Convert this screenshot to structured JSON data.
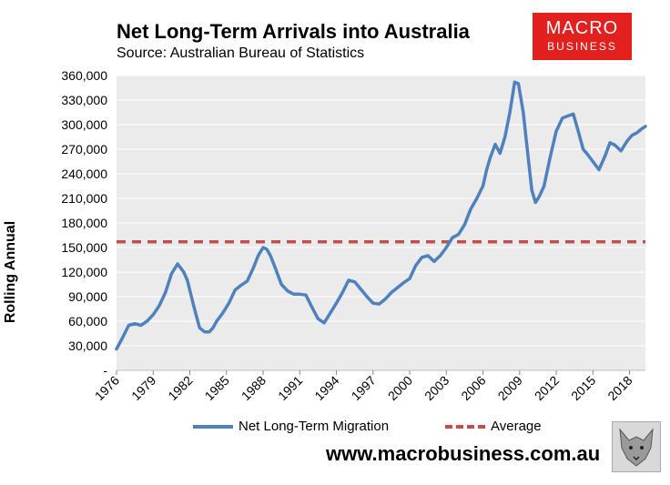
{
  "header": {
    "title": "Net Long-Term Arrivals into Australia",
    "subtitle": "Source: Australian Bureau of Statistics"
  },
  "logo": {
    "line1": "MACRO",
    "line2": "BUSINESS"
  },
  "footer": {
    "website": "www.macrobusiness.com.au"
  },
  "colors": {
    "series": "#4f81bd",
    "average": "#c0504d",
    "plot_bg": "#ebebeb",
    "logo_bg": "#e2201d"
  },
  "chart_data": {
    "type": "line",
    "title": "Net Long-Term Arrivals into Australia",
    "xlabel": "",
    "ylabel": "Rolling Annual",
    "ylim": [
      0,
      360000
    ],
    "xlim": [
      1976,
      2019.3
    ],
    "yticks": [
      {
        "value": 0,
        "label": "-"
      },
      {
        "value": 30000,
        "label": "30,000"
      },
      {
        "value": 60000,
        "label": "60,000"
      },
      {
        "value": 90000,
        "label": "90,000"
      },
      {
        "value": 120000,
        "label": "120,000"
      },
      {
        "value": 150000,
        "label": "150,000"
      },
      {
        "value": 180000,
        "label": "180,000"
      },
      {
        "value": 210000,
        "label": "210,000"
      },
      {
        "value": 240000,
        "label": "240,000"
      },
      {
        "value": 270000,
        "label": "270,000"
      },
      {
        "value": 300000,
        "label": "300,000"
      },
      {
        "value": 330000,
        "label": "330,000"
      },
      {
        "value": 360000,
        "label": "360,000"
      }
    ],
    "xticks": [
      "1976",
      "1979",
      "1982",
      "1985",
      "1988",
      "1991",
      "1994",
      "1997",
      "2000",
      "2003",
      "2006",
      "2009",
      "2012",
      "2015",
      "2018"
    ],
    "legend_position": "bottom",
    "series": [
      {
        "name": "Net Long-Term Migration",
        "x": [
          1976.0,
          1976.5,
          1977.0,
          1977.5,
          1978.0,
          1978.5,
          1979.0,
          1979.5,
          1980.0,
          1980.5,
          1981.0,
          1981.5,
          1981.8,
          1982.3,
          1982.8,
          1983.2,
          1983.6,
          1983.9,
          1984.2,
          1984.7,
          1985.2,
          1985.7,
          1986.2,
          1986.7,
          1987.2,
          1987.6,
          1988.0,
          1988.3,
          1988.6,
          1989.0,
          1989.5,
          1990.0,
          1990.5,
          1991.0,
          1991.5,
          1992.0,
          1992.5,
          1993.0,
          1993.5,
          1994.0,
          1994.5,
          1995.0,
          1995.5,
          1996.0,
          1996.5,
          1997.0,
          1997.5,
          1998.0,
          1998.5,
          1999.0,
          1999.5,
          2000.0,
          2000.5,
          2001.0,
          2001.5,
          2002.0,
          2002.5,
          2003.0,
          2003.5,
          2004.0,
          2004.5,
          2005.0,
          2005.5,
          2006.0,
          2006.3,
          2006.6,
          2007.0,
          2007.4,
          2007.8,
          2008.2,
          2008.6,
          2008.9,
          2009.3,
          2009.7,
          2010.0,
          2010.3,
          2010.6,
          2011.0,
          2011.5,
          2012.0,
          2012.5,
          2013.0,
          2013.4,
          2013.8,
          2014.2,
          2014.6,
          2015.0,
          2015.5,
          2016.0,
          2016.4,
          2016.8,
          2017.3,
          2017.8,
          2018.2,
          2018.6,
          2019.0,
          2019.3
        ],
        "y": [
          26000,
          40000,
          55000,
          57000,
          55000,
          60000,
          68000,
          79000,
          95000,
          118000,
          130000,
          120000,
          110000,
          80000,
          52000,
          47000,
          47000,
          52000,
          60000,
          70000,
          82000,
          98000,
          104000,
          109000,
          125000,
          140000,
          150000,
          148000,
          140000,
          125000,
          105000,
          97000,
          93000,
          93000,
          92000,
          77000,
          63000,
          58000,
          70000,
          82000,
          95000,
          110000,
          108000,
          99000,
          90000,
          82000,
          81000,
          87000,
          95000,
          101000,
          107000,
          112000,
          128000,
          138000,
          140000,
          133000,
          140000,
          150000,
          162000,
          166000,
          178000,
          197000,
          210000,
          225000,
          245000,
          260000,
          276000,
          265000,
          285000,
          315000,
          352000,
          350000,
          315000,
          260000,
          220000,
          205000,
          212000,
          225000,
          260000,
          292000,
          308000,
          311000,
          313000,
          292000,
          270000,
          263000,
          255000,
          245000,
          262000,
          278000,
          275000,
          268000,
          280000,
          287000,
          290000,
          295000,
          298000
        ]
      }
    ],
    "average": {
      "name": "Average",
      "value": 157000
    }
  }
}
